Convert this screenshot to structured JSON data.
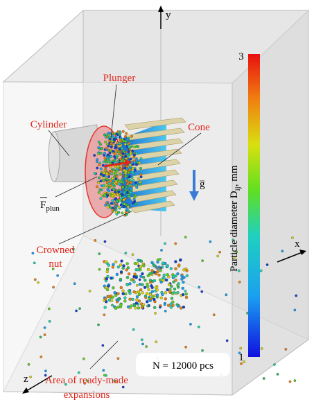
{
  "axes": {
    "y": "y",
    "x": "x",
    "z": "z"
  },
  "labels": {
    "plunger": "Plunger",
    "cylinder": "Cylinder",
    "cone": "Cone",
    "force": {
      "main": "F",
      "sub": "plun"
    },
    "gravity": "g",
    "crowned_nut": [
      "Crowned",
      "nut"
    ],
    "area": [
      "Area of ready-made",
      "expansions"
    ]
  },
  "count": "N = 12000 pcs",
  "colorbar": {
    "max": "3",
    "min": "1",
    "title": {
      "before": "Particle diameter D",
      "sub": "ij",
      "after": ", mm"
    }
  }
}
